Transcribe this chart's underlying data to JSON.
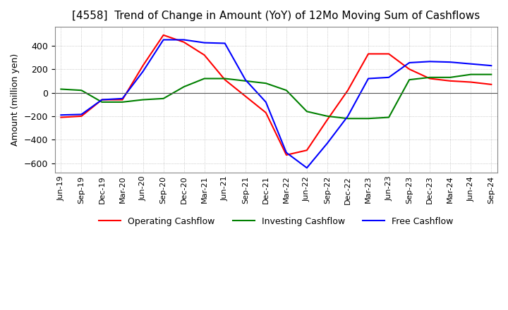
{
  "title": "[4558]  Trend of Change in Amount (YoY) of 12Mo Moving Sum of Cashflows",
  "ylabel": "Amount (million yen)",
  "ylim": [
    -680,
    560
  ],
  "yticks": [
    -600,
    -400,
    -200,
    0,
    200,
    400
  ],
  "x_labels": [
    "Jun-19",
    "Sep-19",
    "Dec-19",
    "Mar-20",
    "Jun-20",
    "Sep-20",
    "Dec-20",
    "Mar-21",
    "Jun-21",
    "Sep-21",
    "Dec-21",
    "Mar-22",
    "Jun-22",
    "Sep-22",
    "Dec-22",
    "Mar-23",
    "Jun-23",
    "Sep-23",
    "Dec-23",
    "Mar-24",
    "Jun-24",
    "Sep-24"
  ],
  "operating_cashflow": [
    -210,
    -200,
    -60,
    -60,
    230,
    490,
    430,
    320,
    110,
    -30,
    -170,
    -530,
    -490,
    -230,
    20,
    330,
    330,
    200,
    120,
    100,
    90,
    70
  ],
  "investing_cashflow": [
    30,
    20,
    -80,
    -80,
    -60,
    -50,
    50,
    120,
    120,
    100,
    80,
    20,
    -160,
    -200,
    -220,
    -220,
    -210,
    110,
    130,
    130,
    155,
    155
  ],
  "free_cashflow": [
    -190,
    -185,
    -60,
    -50,
    180,
    450,
    450,
    425,
    420,
    110,
    -80,
    -510,
    -640,
    -430,
    -200,
    120,
    130,
    255,
    265,
    260,
    245,
    230
  ],
  "operating_color": "#ff0000",
  "investing_color": "#008000",
  "free_color": "#0000ff",
  "background_color": "#ffffff",
  "grid_color": "#aaaaaa",
  "title_fontsize": 11,
  "legend_fontsize": 9,
  "axis_fontsize": 9,
  "tick_fontsize": 8
}
